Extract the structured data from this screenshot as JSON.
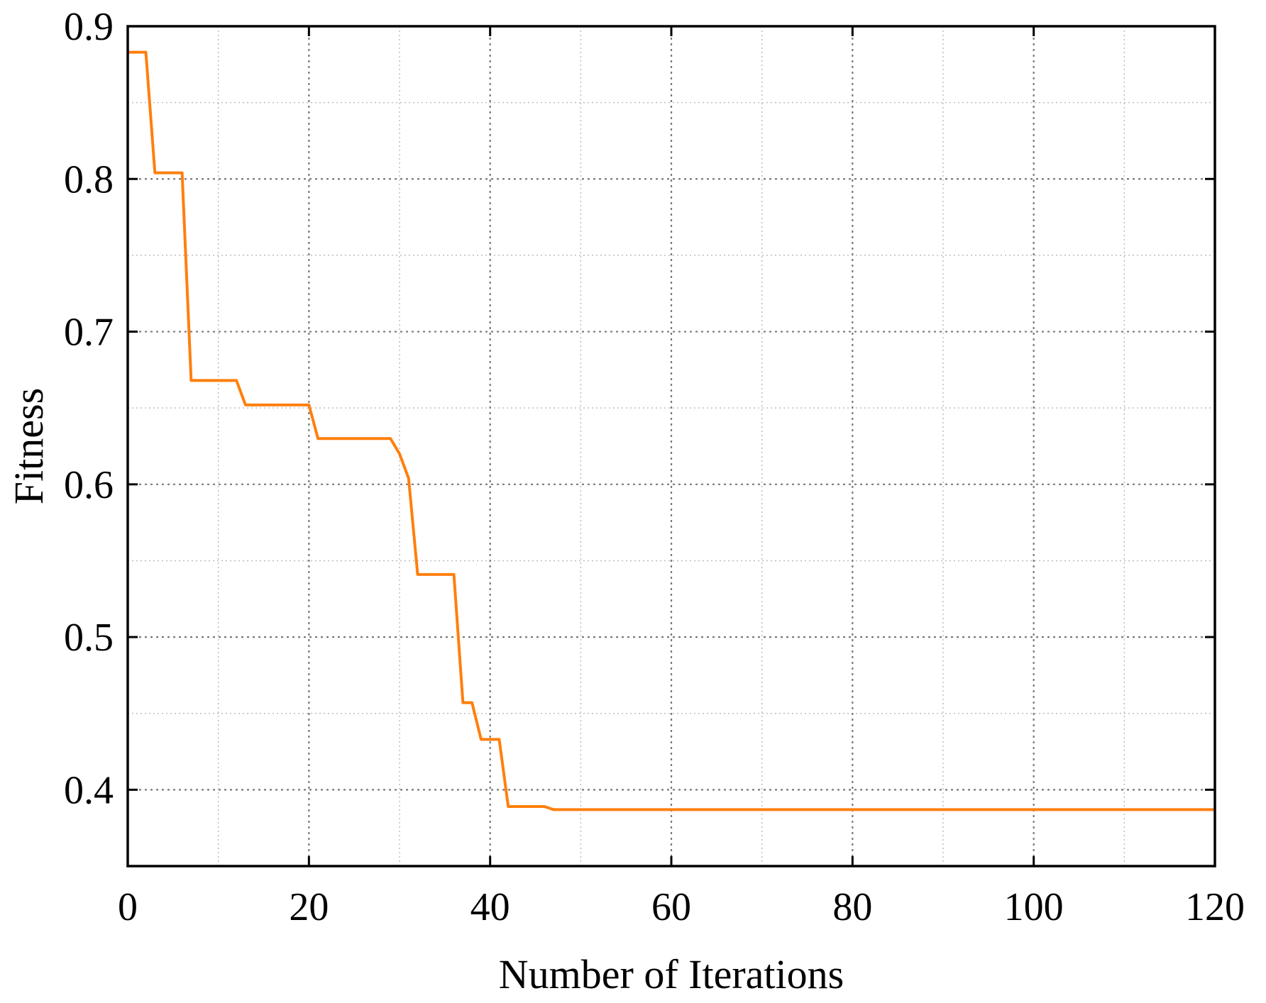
{
  "chart_data": {
    "type": "line",
    "title": "",
    "xlabel": "Number of Iterations",
    "ylabel": "Fitness",
    "xlim": [
      0,
      120
    ],
    "ylim": [
      0.35,
      0.9
    ],
    "x_ticks": [
      0,
      20,
      40,
      60,
      80,
      100,
      120
    ],
    "x_tick_labels": [
      "0",
      "20",
      "40",
      "60",
      "80",
      "100",
      "120"
    ],
    "y_ticks": [
      0.4,
      0.5,
      0.6,
      0.7,
      0.8,
      0.9
    ],
    "y_tick_labels": [
      "0.4",
      "0.5",
      "0.6",
      "0.7",
      "0.8",
      "0.9"
    ],
    "x_minor_step": 10,
    "y_minor_step": 0.05,
    "grid": true,
    "legend": "none",
    "line_color": "#ff7f0e",
    "series": [
      {
        "x": [
          0,
          2,
          3,
          6,
          7,
          12,
          13,
          20,
          21,
          29,
          30,
          31,
          32,
          36,
          37,
          38,
          39,
          41,
          42,
          46,
          47,
          120
        ],
        "y": [
          0.883,
          0.883,
          0.804,
          0.804,
          0.668,
          0.668,
          0.652,
          0.652,
          0.63,
          0.63,
          0.62,
          0.604,
          0.541,
          0.541,
          0.457,
          0.457,
          0.433,
          0.433,
          0.389,
          0.389,
          0.387,
          0.387
        ]
      }
    ]
  }
}
